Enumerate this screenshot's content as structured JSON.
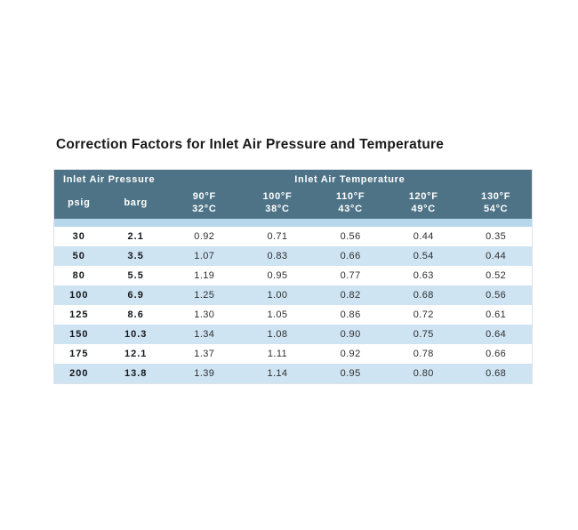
{
  "title": "Correction Factors for Inlet Air Pressure and Temperature",
  "table": {
    "group_headers": {
      "pressure": "Inlet Air Pressure",
      "temperature": "Inlet Air Temperature"
    },
    "pressure_columns": [
      "psig",
      "barg"
    ],
    "temp_columns": [
      {
        "f": "90°F",
        "c": "32°C"
      },
      {
        "f": "100°F",
        "c": "38°C"
      },
      {
        "f": "110°F",
        "c": "43°C"
      },
      {
        "f": "120°F",
        "c": "49°C"
      },
      {
        "f": "130°F",
        "c": "54°C"
      }
    ],
    "rows": [
      {
        "psig": "30",
        "barg": "2.1",
        "factors": [
          "0.92",
          "0.71",
          "0.56",
          "0.44",
          "0.35"
        ]
      },
      {
        "psig": "50",
        "barg": "3.5",
        "factors": [
          "1.07",
          "0.83",
          "0.66",
          "0.54",
          "0.44"
        ]
      },
      {
        "psig": "80",
        "barg": "5.5",
        "factors": [
          "1.19",
          "0.95",
          "0.77",
          "0.63",
          "0.52"
        ]
      },
      {
        "psig": "100",
        "barg": "6.9",
        "factors": [
          "1.25",
          "1.00",
          "0.82",
          "0.68",
          "0.56"
        ]
      },
      {
        "psig": "125",
        "barg": "8.6",
        "factors": [
          "1.30",
          "1.05",
          "0.86",
          "0.72",
          "0.61"
        ]
      },
      {
        "psig": "150",
        "barg": "10.3",
        "factors": [
          "1.34",
          "1.08",
          "0.90",
          "0.75",
          "0.64"
        ]
      },
      {
        "psig": "175",
        "barg": "12.1",
        "factors": [
          "1.37",
          "1.11",
          "0.92",
          "0.78",
          "0.66"
        ]
      },
      {
        "psig": "200",
        "barg": "13.8",
        "factors": [
          "1.39",
          "1.14",
          "0.95",
          "0.80",
          "0.68"
        ]
      }
    ],
    "colors": {
      "header_bg": "#4e7386",
      "header_text": "#ffffff",
      "row_alt": "#cfe4f2",
      "spacer": "#b7d8ec",
      "border": "#dfe3e7"
    }
  },
  "chart_data": {
    "type": "table",
    "title": "Correction Factors for Inlet Air Pressure and Temperature",
    "column_groups": [
      "Inlet Air Pressure",
      "Inlet Air Temperature"
    ],
    "columns": [
      "psig",
      "barg",
      "90°F / 32°C",
      "100°F / 38°C",
      "110°F / 43°C",
      "120°F / 49°C",
      "130°F / 54°C"
    ],
    "rows": [
      [
        30,
        2.1,
        0.92,
        0.71,
        0.56,
        0.44,
        0.35
      ],
      [
        50,
        3.5,
        1.07,
        0.83,
        0.66,
        0.54,
        0.44
      ],
      [
        80,
        5.5,
        1.19,
        0.95,
        0.77,
        0.63,
        0.52
      ],
      [
        100,
        6.9,
        1.25,
        1.0,
        0.82,
        0.68,
        0.56
      ],
      [
        125,
        8.6,
        1.3,
        1.05,
        0.86,
        0.72,
        0.61
      ],
      [
        150,
        10.3,
        1.34,
        1.08,
        0.9,
        0.75,
        0.64
      ],
      [
        175,
        12.1,
        1.37,
        1.11,
        0.92,
        0.78,
        0.66
      ],
      [
        200,
        13.8,
        1.39,
        1.14,
        0.95,
        0.8,
        0.68
      ]
    ]
  }
}
